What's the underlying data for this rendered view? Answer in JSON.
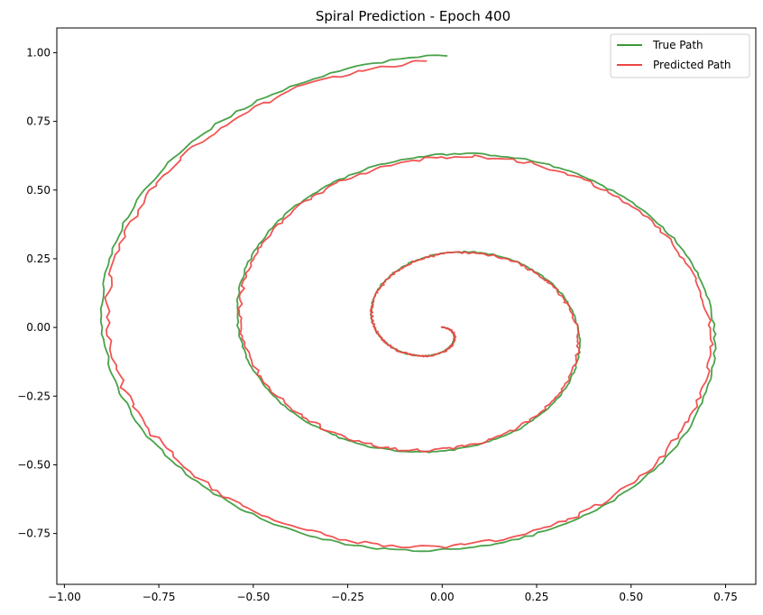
{
  "chart_data": {
    "type": "line",
    "title": "Spiral Prediction - Epoch 400",
    "xlabel": "",
    "ylabel": "",
    "xlim": [
      -1.02,
      0.83
    ],
    "ylim": [
      -0.935,
      1.09
    ],
    "x_ticks": [
      -1.0,
      -0.75,
      -0.5,
      -0.25,
      0.0,
      0.25,
      0.5,
      0.75
    ],
    "x_tick_labels": [
      "−1.00",
      "−0.75",
      "−0.50",
      "−0.25",
      "0.00",
      "0.25",
      "0.50",
      "0.75"
    ],
    "y_ticks": [
      -0.75,
      -0.5,
      -0.25,
      0.0,
      0.25,
      0.5,
      0.75,
      1.0
    ],
    "y_tick_labels": [
      "−0.75",
      "−0.50",
      "−0.25",
      "0.00",
      "0.25",
      "0.50",
      "0.75",
      "1.00"
    ],
    "grid": false,
    "legend_position": "top-right",
    "series": [
      {
        "name": "True Path",
        "color": "#3a9a3a",
        "curve": "archimedean-spiral",
        "spiral_turns": 2.75,
        "x_end": 0.01,
        "y_end": 0.99
      },
      {
        "name": "Predicted Path",
        "color": "#f04545",
        "curve": "archimedean-spiral",
        "spiral_turns": 2.75,
        "x_end": -0.04,
        "y_end": 0.97
      }
    ]
  }
}
